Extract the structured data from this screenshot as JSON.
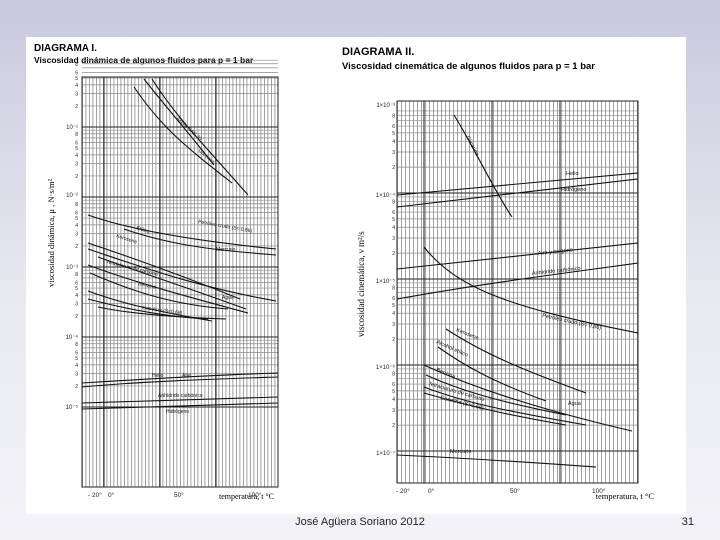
{
  "diagram1": {
    "heading": "DIAGRAMA I.",
    "subtitle": "Viscosidad dinámica de algunos fluidos para p = 1 bar",
    "y_axis_title": "viscosidad dinámica, μ ,  N·s/m²",
    "x_axis_title": "temperatura, t °C",
    "decade_labels": [
      "10⁻¹",
      "10⁻²",
      "10⁻³",
      "10⁻⁴",
      "10⁻⁵"
    ],
    "minor_tick_digits": [
      "8",
      "6",
      "5",
      "4",
      "3",
      "2",
      "8",
      "6",
      "5",
      "4",
      "3",
      "2",
      "8",
      "6",
      "5",
      "4",
      "3",
      "2",
      "8",
      "6",
      "5",
      "4",
      "3",
      "2",
      "8",
      "6",
      "5",
      "4",
      "3",
      "2"
    ],
    "x_tick_labels": [
      "- 20°",
      "0°",
      "50°",
      "100°"
    ],
    "curve_labels": [
      "Aceite SAE 30",
      "Glicerina",
      "Petróleo crudo (S= 0,86)",
      "Mercurio",
      "Etílico",
      "Tetracloruro de carbono",
      "Kerosene",
      "Agua",
      "Benzina",
      "Gasolina (S=0,68)",
      "Helio",
      "Aire",
      "Anhídrido carbónico",
      "Hidrógeno"
    ]
  },
  "diagram2": {
    "heading": "DIAGRAMA II.",
    "subtitle": "Viscosidad cinemática de algunos fluidos para p = 1 bar",
    "y_axis_title": "viscosidad cinemática, ν  m²/s",
    "x_axis_title": "temperatura, t °C",
    "decade_labels": [
      "1×10⁻³",
      "1×10⁻⁴",
      "1×10⁻⁵",
      "1×10⁻⁶",
      "1×10⁻⁷"
    ],
    "minor_tick_digits": [
      "8",
      "6",
      "5",
      "4",
      "3",
      "2",
      "8",
      "6",
      "5",
      "4",
      "3",
      "2",
      "8",
      "6",
      "5",
      "4",
      "3",
      "2",
      "8",
      "6",
      "5",
      "4",
      "3",
      "2",
      "8",
      "6"
    ],
    "x_tick_labels": [
      "- 20°",
      "0°",
      "50°",
      "100°"
    ],
    "curve_labels": [
      "Glicerina",
      "Helio",
      "Hidrógeno",
      "Aire y oxígeno",
      "Anhídrido carbónico",
      "Petróleo crudo (S= 0,86)",
      "Kerosene",
      "Alcohol etílico",
      "Benzina",
      "Tetracloruro de carbono",
      "Agua",
      "Gasolina (S=0,68)",
      "Mercurio"
    ]
  },
  "footer": {
    "author": "José Agüera Soriano 2012",
    "page_number": "31"
  }
}
